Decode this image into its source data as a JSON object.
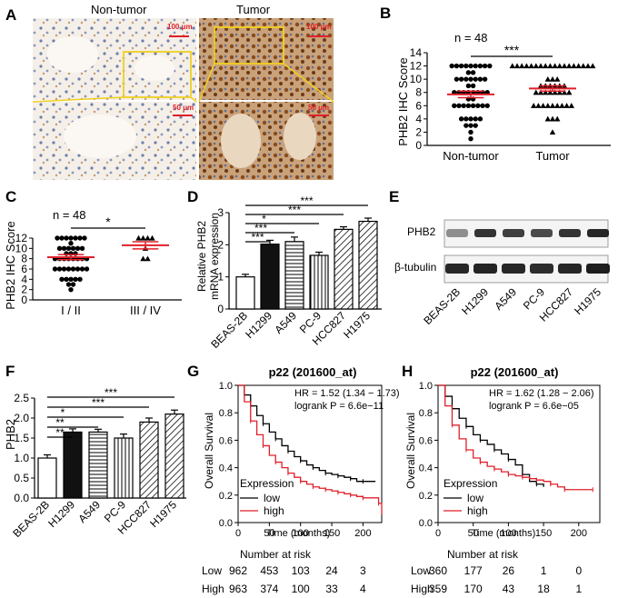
{
  "panels": {
    "A": "A",
    "B": "B",
    "C": "C",
    "D": "D",
    "E": "E",
    "F": "F",
    "G": "G",
    "H": "H"
  },
  "colors": {
    "red": "#e0202a",
    "black": "#000000",
    "yellow": "#f0d020",
    "stain_brown": "#8a4a1c",
    "stain_blue": "#5a6fa0"
  },
  "panel_a": {
    "col_labels": [
      "Non-tumor",
      "Tumor"
    ],
    "scale_top": "100 μm",
    "scale_bottom": "50 μm"
  },
  "panel_b": {
    "n_label": "n = 48",
    "significance": "***",
    "chart_data": {
      "type": "scatter",
      "ylabel": "PHB2 IHC Score",
      "ylim": [
        0,
        14
      ],
      "yticks": [
        "0",
        "2",
        "4",
        "6",
        "8",
        "10",
        "12",
        "14"
      ],
      "categories": [
        "Non-tumor",
        "Tumor"
      ],
      "series": [
        {
          "name": "Non-tumor",
          "marker": "circle",
          "mean": 7.7,
          "sem": 0.5,
          "values": [
            12,
            12,
            12,
            12,
            12,
            12,
            12,
            12,
            12,
            11,
            11,
            10,
            10,
            10,
            10,
            10,
            10,
            10,
            9,
            9,
            8,
            8,
            8,
            8,
            8,
            8,
            8,
            8,
            7,
            7,
            6,
            6,
            6,
            6,
            6,
            6,
            6,
            6,
            4,
            4,
            4,
            4,
            4,
            3,
            3,
            3,
            2,
            1
          ]
        },
        {
          "name": "Tumor",
          "marker": "triangle",
          "mean": 8.6,
          "sem": 0.4,
          "values": [
            12,
            12,
            12,
            12,
            12,
            12,
            12,
            12,
            12,
            12,
            12,
            12,
            12,
            12,
            12,
            12,
            12,
            12,
            10,
            10,
            10,
            9,
            9,
            9,
            9,
            9,
            9,
            8,
            8,
            8,
            8,
            8,
            8,
            8,
            8,
            6,
            6,
            6,
            6,
            6,
            6,
            6,
            6,
            6,
            4,
            4,
            4,
            2
          ]
        }
      ]
    }
  },
  "panel_c": {
    "n_label": "n = 48",
    "significance": "*",
    "chart_data": {
      "type": "scatter",
      "ylabel": "PHB2 IHC Score",
      "ylim": [
        0,
        12
      ],
      "yticks": [
        "0",
        "2",
        "4",
        "6",
        "8",
        "10",
        "12"
      ],
      "categories": [
        "I / II",
        "III / IV"
      ],
      "series": [
        {
          "name": "I / II",
          "marker": "circle",
          "mean": 8.3,
          "sem": 0.5,
          "values": [
            12,
            12,
            12,
            12,
            12,
            12,
            12,
            11,
            10,
            10,
            10,
            10,
            10,
            10,
            9,
            9,
            9,
            8,
            8,
            8,
            8,
            8,
            8,
            8,
            8,
            6,
            6,
            6,
            6,
            6,
            6,
            6,
            6,
            4,
            4,
            4,
            4,
            4,
            3,
            3,
            2
          ]
        },
        {
          "name": "III / IV",
          "marker": "triangle",
          "mean": 10.6,
          "sem": 0.7,
          "values": [
            12,
            12,
            12,
            12,
            10,
            8,
            8
          ]
        }
      ]
    }
  },
  "panel_d": {
    "ylabel_line1": "Relative PHB2",
    "ylabel_line2": "mRNA expression",
    "significance": [
      "***",
      "***",
      "*",
      "***",
      "***"
    ],
    "chart_data": {
      "type": "bar",
      "categories": [
        "BEAS-2B",
        "H1299",
        "A549",
        "PC-9",
        "HCC827",
        "H1975"
      ],
      "values": [
        1.0,
        2.02,
        2.1,
        1.67,
        2.48,
        2.73
      ],
      "errors": [
        0.08,
        0.12,
        0.14,
        0.1,
        0.08,
        0.1
      ],
      "fills": [
        "white",
        "black",
        "hlines",
        "vlines",
        "diag",
        "diag"
      ],
      "ylim": [
        0,
        3
      ],
      "yticks": [
        "0",
        "1",
        "2",
        "3"
      ]
    }
  },
  "panel_e": {
    "rows": [
      "PHB2",
      "β-tubulin"
    ],
    "lanes": [
      "BEAS-2B",
      "H1299",
      "A549",
      "PC-9",
      "HCC827",
      "H1975"
    ],
    "phb2_intensity": [
      0.45,
      0.85,
      0.8,
      0.75,
      0.85,
      0.9
    ],
    "tubulin_intensity": [
      0.9,
      0.92,
      0.9,
      0.88,
      0.9,
      0.95
    ]
  },
  "panel_f": {
    "significance": [
      "***",
      "***",
      "*",
      "**",
      "**"
    ],
    "chart_data": {
      "type": "bar",
      "ylabel": "PHB2",
      "categories": [
        "BEAS-2B",
        "H1299",
        "A549",
        "PC-9",
        "HCC827",
        "H1975"
      ],
      "values": [
        1.0,
        1.65,
        1.65,
        1.5,
        1.9,
        2.1
      ],
      "errors": [
        0.08,
        0.08,
        0.07,
        0.1,
        0.1,
        0.1
      ],
      "fills": [
        "white",
        "black",
        "hlines",
        "vlines",
        "diag",
        "diag"
      ],
      "ylim": [
        0,
        2.5
      ],
      "yticks": [
        "0.0",
        "0.5",
        "1.0",
        "1.5",
        "2.0",
        "2.5"
      ]
    }
  },
  "panel_g": {
    "title": "p22 (201600_at)",
    "hr": "HR = 1.52 (1.34 − 1.73)",
    "logrank": "logrank P = 6.6e−11",
    "legend_title": "Expression",
    "legend": [
      "low",
      "high"
    ],
    "risk_title": "Number at risk",
    "risk_rows": [
      {
        "label": "Low",
        "values": [
          "962",
          "453",
          "103",
          "24",
          "3"
        ]
      },
      {
        "label": "High",
        "values": [
          "963",
          "374",
          "100",
          "33",
          "4"
        ]
      }
    ],
    "chart_data": {
      "type": "line",
      "xlabel": "Time (months)",
      "ylabel": "Overall Survival",
      "xlim": [
        0,
        230
      ],
      "ylim": [
        0,
        1
      ],
      "xticks": [
        "0",
        "50",
        "100",
        "150",
        "200"
      ],
      "yticks": [
        "0.0",
        "0.2",
        "0.4",
        "0.6",
        "0.8",
        "1.0"
      ],
      "series": [
        {
          "name": "low",
          "x": [
            0,
            10,
            20,
            30,
            40,
            50,
            60,
            70,
            80,
            90,
            100,
            110,
            120,
            130,
            140,
            150,
            160,
            170,
            180,
            190,
            200,
            220
          ],
          "y": [
            1,
            0.93,
            0.85,
            0.78,
            0.72,
            0.66,
            0.61,
            0.56,
            0.52,
            0.48,
            0.45,
            0.42,
            0.4,
            0.38,
            0.36,
            0.35,
            0.34,
            0.33,
            0.32,
            0.3,
            0.3,
            0.3
          ]
        },
        {
          "name": "high",
          "x": [
            0,
            10,
            20,
            30,
            40,
            50,
            60,
            70,
            80,
            90,
            100,
            110,
            120,
            130,
            140,
            150,
            160,
            170,
            180,
            190,
            200,
            220,
            225,
            230
          ],
          "y": [
            1,
            0.88,
            0.74,
            0.64,
            0.56,
            0.49,
            0.44,
            0.4,
            0.36,
            0.33,
            0.3,
            0.28,
            0.26,
            0.25,
            0.24,
            0.23,
            0.22,
            0.21,
            0.2,
            0.19,
            0.18,
            0.18,
            0.14,
            0.06
          ]
        }
      ]
    }
  },
  "panel_h": {
    "title": "p22 (201600_at)",
    "hr": "HR = 1.62 (1.28 − 2.06)",
    "logrank": "logrank P = 6.6e−05",
    "legend_title": "Expression",
    "legend": [
      "low",
      "high"
    ],
    "risk_title": "Number at risk",
    "risk_rows": [
      {
        "label": "Low",
        "values": [
          "360",
          "177",
          "26",
          "1",
          "0"
        ]
      },
      {
        "label": "High",
        "values": [
          "359",
          "170",
          "43",
          "18",
          "1"
        ]
      }
    ],
    "chart_data": {
      "type": "line",
      "xlabel": "Time (months)",
      "ylabel": "Overall Survival",
      "xlim": [
        0,
        230
      ],
      "ylim": [
        0,
        1
      ],
      "xticks": [
        "0",
        "50",
        "100",
        "150",
        "200"
      ],
      "yticks": [
        "0.0",
        "0.2",
        "0.4",
        "0.6",
        "0.8",
        "1.0"
      ],
      "series": [
        {
          "name": "low",
          "x": [
            0,
            10,
            20,
            30,
            40,
            50,
            60,
            70,
            80,
            90,
            100,
            110,
            120,
            130,
            140,
            150
          ],
          "y": [
            1,
            0.92,
            0.83,
            0.76,
            0.7,
            0.64,
            0.6,
            0.57,
            0.53,
            0.5,
            0.46,
            0.42,
            0.35,
            0.3,
            0.28,
            0.26
          ]
        },
        {
          "name": "high",
          "x": [
            0,
            10,
            20,
            30,
            40,
            50,
            60,
            70,
            80,
            90,
            100,
            110,
            120,
            130,
            140,
            150,
            160,
            170,
            180,
            200,
            220
          ],
          "y": [
            1,
            0.85,
            0.71,
            0.61,
            0.53,
            0.47,
            0.44,
            0.41,
            0.39,
            0.37,
            0.35,
            0.34,
            0.33,
            0.32,
            0.31,
            0.3,
            0.28,
            0.26,
            0.24,
            0.24,
            0.24
          ]
        }
      ]
    }
  }
}
